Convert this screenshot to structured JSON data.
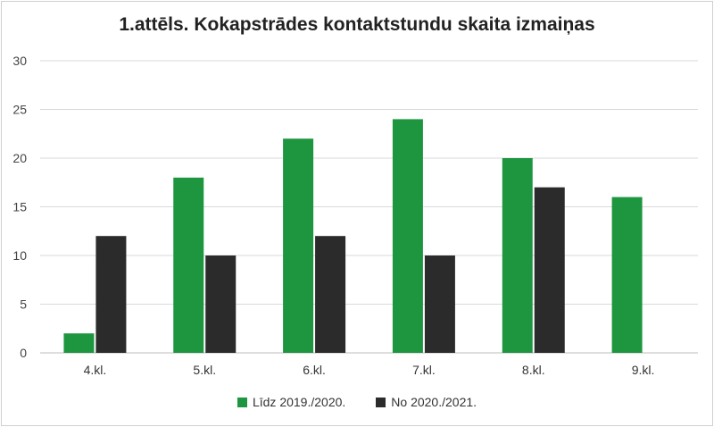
{
  "chart_data": {
    "type": "bar",
    "title": "1.attēls. Kokapstrādes kontaktstundu skaita izmaiņas",
    "categories": [
      "4.kl.",
      "5.kl.",
      "6.kl.",
      "7.kl.",
      "8.kl.",
      "9.kl."
    ],
    "series": [
      {
        "name": "Līdz 2019./2020.",
        "color": "#1e9640",
        "values": [
          2,
          18,
          22,
          24,
          20,
          16
        ]
      },
      {
        "name": "No 2020./2021.",
        "color": "#2b2b2b",
        "values": [
          12,
          10,
          12,
          10,
          17,
          0
        ]
      }
    ],
    "ylim": [
      0,
      30
    ],
    "yticks": [
      0,
      5,
      10,
      15,
      20,
      25,
      30
    ],
    "grid": true,
    "legend_position": "bottom"
  }
}
